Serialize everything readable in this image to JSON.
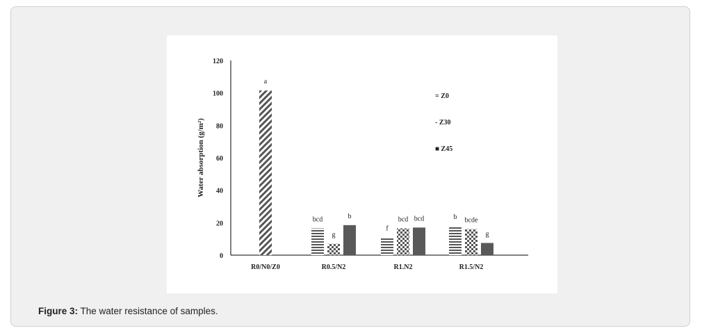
{
  "caption": {
    "label": "Figure 3:",
    "text": " The water resistance of samples."
  },
  "chart_data": {
    "type": "bar",
    "ylabel": "Water absorption (g/m²)",
    "ylim": [
      0,
      120
    ],
    "yticks": [
      0,
      20,
      40,
      60,
      80,
      100,
      120
    ],
    "categories": [
      "R0/N0/Z0",
      "R0.5/N2",
      "R1.N2",
      "R1.5/N2"
    ],
    "series": [
      {
        "name": "Z0",
        "legend": "= Z0",
        "pattern": "hstripes",
        "values": [
          null,
          16.5,
          11,
          18
        ]
      },
      {
        "name": "Z30",
        "legend": "- Z30",
        "pattern": "mixed",
        "values": [
          101.5,
          7,
          16.5,
          16
        ]
      },
      {
        "name": "Z45",
        "legend": "■ Z45",
        "pattern": "solid",
        "values": [
          null,
          18.5,
          17,
          7.5
        ]
      }
    ],
    "annotations": [
      [
        "",
        "a",
        "",
        ""
      ],
      [
        "bcd",
        "g",
        "b"
      ],
      [
        "f",
        "bcd",
        "bcd"
      ],
      [
        "b",
        "bcde",
        "g"
      ]
    ],
    "colors": {
      "solid": "#595959",
      "stripe": "#555555",
      "axis": "#000000"
    }
  }
}
